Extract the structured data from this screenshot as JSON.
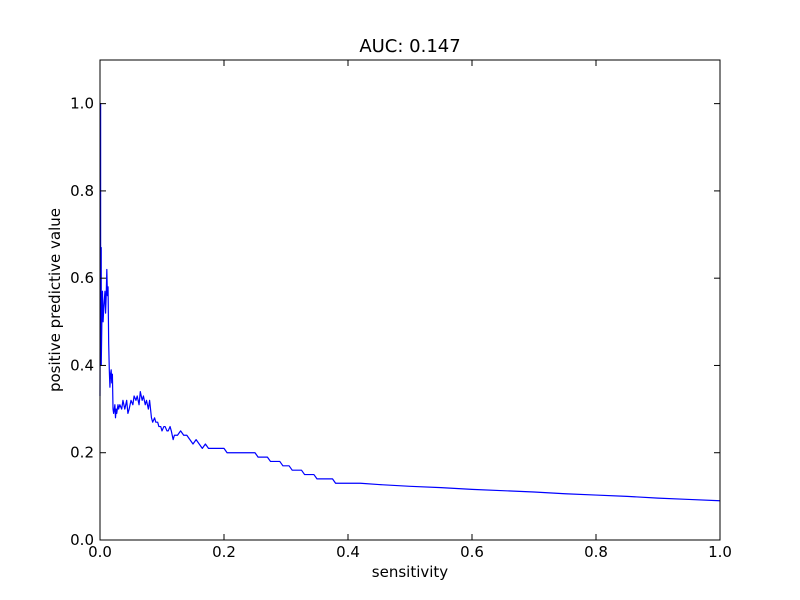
{
  "chart_data": {
    "type": "line",
    "title": "AUC: 0.147",
    "xlabel": "sensitivity",
    "ylabel": "positive predictive value",
    "xlim": [
      0,
      1.0
    ],
    "ylim": [
      0,
      1.1
    ],
    "xticks": [
      0.0,
      0.2,
      0.4,
      0.6,
      0.8,
      1.0
    ],
    "xtick_labels": [
      "0.0",
      "0.2",
      "0.4",
      "0.6",
      "0.8",
      "1.0"
    ],
    "yticks": [
      0.0,
      0.2,
      0.4,
      0.6,
      0.8,
      1.0
    ],
    "ytick_labels": [
      "0.0",
      "0.2",
      "0.4",
      "0.6",
      "0.8",
      "1.0"
    ],
    "grid": false,
    "legend": "none",
    "series": [
      {
        "color": "#0000ff",
        "x": [
          0.0,
          0.001,
          0.001,
          0.002,
          0.002,
          0.003,
          0.004,
          0.005,
          0.006,
          0.007,
          0.008,
          0.009,
          0.01,
          0.011,
          0.012,
          0.013,
          0.014,
          0.015,
          0.016,
          0.017,
          0.018,
          0.019,
          0.02,
          0.021,
          0.022,
          0.023,
          0.024,
          0.025,
          0.026,
          0.027,
          0.028,
          0.029,
          0.03,
          0.032,
          0.035,
          0.037,
          0.04,
          0.043,
          0.045,
          0.047,
          0.05,
          0.053,
          0.055,
          0.058,
          0.06,
          0.063,
          0.065,
          0.068,
          0.07,
          0.073,
          0.075,
          0.078,
          0.08,
          0.083,
          0.085,
          0.088,
          0.09,
          0.093,
          0.095,
          0.098,
          0.1,
          0.103,
          0.105,
          0.108,
          0.11,
          0.113,
          0.115,
          0.118,
          0.12,
          0.125,
          0.13,
          0.135,
          0.14,
          0.145,
          0.15,
          0.155,
          0.16,
          0.165,
          0.17,
          0.175,
          0.18,
          0.185,
          0.19,
          0.195,
          0.2,
          0.205,
          0.21,
          0.215,
          0.22,
          0.225,
          0.23,
          0.235,
          0.24,
          0.245,
          0.25,
          0.255,
          0.26,
          0.265,
          0.27,
          0.275,
          0.28,
          0.285,
          0.29,
          0.295,
          0.3,
          0.305,
          0.31,
          0.315,
          0.32,
          0.325,
          0.33,
          0.335,
          0.34,
          0.345,
          0.35,
          0.355,
          0.36,
          0.365,
          0.37,
          0.375,
          0.38,
          0.385,
          0.39,
          0.395,
          0.4,
          0.41,
          0.42,
          0.45,
          0.5,
          0.55,
          0.6,
          0.65,
          0.7,
          0.75,
          0.8,
          0.85,
          0.9,
          0.95,
          1.0
        ],
        "y": [
          0.33,
          1.0,
          0.5,
          0.67,
          0.4,
          0.5,
          0.57,
          0.5,
          0.53,
          0.55,
          0.57,
          0.52,
          0.56,
          0.62,
          0.56,
          0.58,
          0.45,
          0.39,
          0.35,
          0.38,
          0.39,
          0.36,
          0.38,
          0.3,
          0.29,
          0.3,
          0.31,
          0.28,
          0.3,
          0.29,
          0.3,
          0.31,
          0.3,
          0.31,
          0.3,
          0.32,
          0.3,
          0.32,
          0.29,
          0.3,
          0.32,
          0.31,
          0.33,
          0.32,
          0.33,
          0.31,
          0.34,
          0.32,
          0.33,
          0.31,
          0.32,
          0.3,
          0.32,
          0.28,
          0.27,
          0.28,
          0.27,
          0.27,
          0.26,
          0.26,
          0.25,
          0.26,
          0.26,
          0.25,
          0.25,
          0.26,
          0.25,
          0.23,
          0.24,
          0.24,
          0.25,
          0.24,
          0.24,
          0.23,
          0.22,
          0.23,
          0.22,
          0.21,
          0.22,
          0.21,
          0.21,
          0.21,
          0.21,
          0.21,
          0.21,
          0.2,
          0.2,
          0.2,
          0.2,
          0.2,
          0.2,
          0.2,
          0.2,
          0.2,
          0.2,
          0.19,
          0.19,
          0.19,
          0.19,
          0.18,
          0.18,
          0.18,
          0.18,
          0.17,
          0.17,
          0.17,
          0.16,
          0.16,
          0.16,
          0.16,
          0.15,
          0.15,
          0.15,
          0.15,
          0.14,
          0.14,
          0.14,
          0.14,
          0.14,
          0.14,
          0.13,
          0.13,
          0.13,
          0.13,
          0.13,
          0.13,
          0.13,
          0.127,
          0.123,
          0.12,
          0.116,
          0.113,
          0.11,
          0.106,
          0.103,
          0.1,
          0.096,
          0.093,
          0.09
        ]
      }
    ]
  }
}
